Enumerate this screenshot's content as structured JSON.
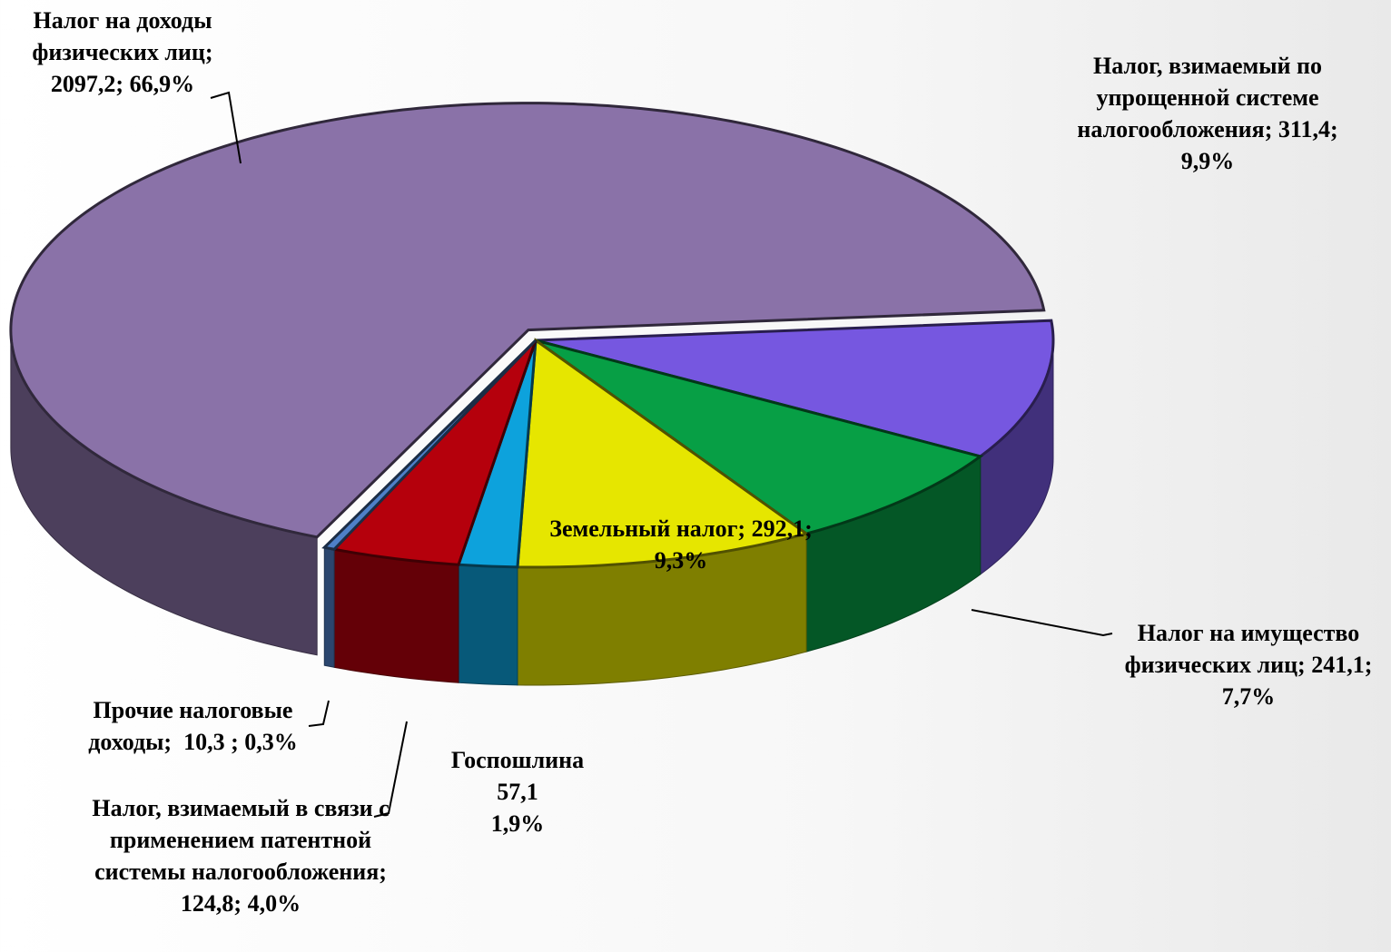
{
  "chart_data": {
    "type": "pie3d",
    "categories": [
      "Налог, взимаемый по упрощенной системе налогообложения;",
      "Налог на имущество физических лиц;",
      "Земельный налог;",
      "Госпошлина",
      "Налог, взимаемый в связи с применением патентной системы налогообложения;",
      "Прочие налоговые доходы;",
      "Налог на доходы физических лиц;"
    ],
    "values": [
      311.4,
      241.1,
      292.1,
      57.1,
      124.8,
      10.3,
      2097.2
    ],
    "value_labels": [
      "311,4; 9,9%",
      "241,1; 7,7%",
      "292,1; 9,3%",
      "57,1\n1,9%",
      "124,8; 4,0%",
      "10,3   ; 0,3%",
      "2097,2; 66,9%"
    ],
    "colors": [
      "#7657e0",
      "#079f45",
      "#e6e600",
      "#0da2dc",
      "#b5000c",
      "#4e80c8",
      "#8a72a8"
    ]
  }
}
